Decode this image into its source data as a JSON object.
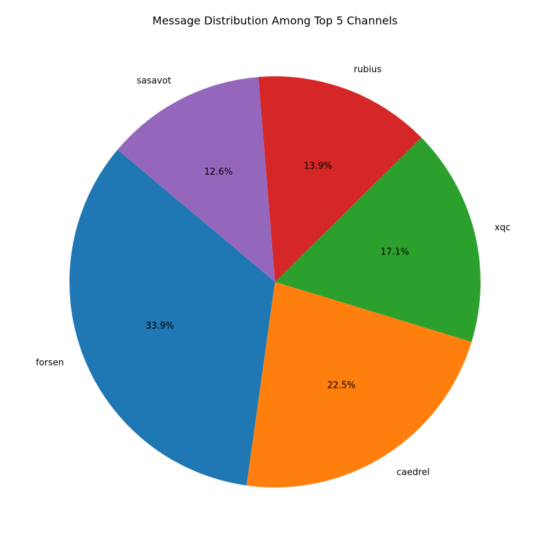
{
  "chart_data": {
    "type": "pie",
    "title": "Message Distribution Among Top 5 Channels",
    "categories": [
      "forsen",
      "caedrel",
      "xqc",
      "rubius",
      "sasavot"
    ],
    "values": [
      33.9,
      22.5,
      17.1,
      13.9,
      12.6
    ],
    "value_labels": [
      "33.9%",
      "22.5%",
      "17.1%",
      "13.9%",
      "12.6%"
    ],
    "colors": [
      "#1f77b4",
      "#ff7f0e",
      "#2ca02c",
      "#d62728",
      "#9467bd"
    ],
    "start_angle_deg": 140,
    "direction": "counterclockwise",
    "legend": "none"
  }
}
